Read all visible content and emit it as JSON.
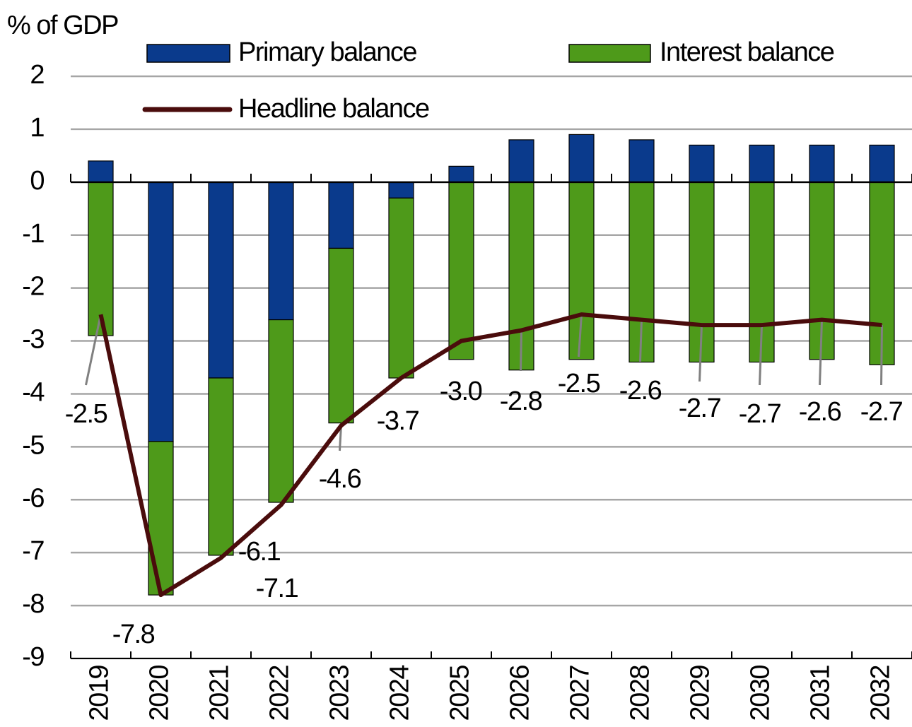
{
  "chart_data": {
    "type": "bar",
    "y_label": "% of GDP",
    "categories": [
      "2019",
      "2020",
      "2021",
      "2022",
      "2023",
      "2024",
      "2025",
      "2026",
      "2027",
      "2028",
      "2029",
      "2030",
      "2031",
      "2032"
    ],
    "series": [
      {
        "name": "Primary balance",
        "color": "#0a3a8c",
        "values": [
          0.4,
          -4.9,
          -3.7,
          -2.6,
          -1.25,
          -0.3,
          0.3,
          0.8,
          0.9,
          0.8,
          0.7,
          0.7,
          0.7,
          0.7
        ]
      },
      {
        "name": "Interest balance",
        "color": "#4e9a1a",
        "values": [
          -2.9,
          -2.9,
          -3.35,
          -3.45,
          -3.3,
          -3.4,
          -3.35,
          -3.55,
          -3.35,
          -3.4,
          -3.4,
          -3.4,
          -3.35,
          -3.45
        ]
      },
      {
        "name": "Headline balance",
        "type": "line",
        "color": "#4a0c0c",
        "values": [
          -2.5,
          -7.8,
          -7.1,
          -6.1,
          -4.6,
          -3.7,
          -3.0,
          -2.8,
          -2.5,
          -2.6,
          -2.7,
          -2.7,
          -2.6,
          -2.7
        ],
        "value_labels": [
          "-2.5",
          "-7.8",
          "-7.1",
          "-6.1",
          "-4.6",
          "-3.7",
          "-3.0",
          "-2.8",
          "-2.5",
          "-2.6",
          "-2.7",
          "-2.7",
          "-2.6",
          "-2.7"
        ]
      }
    ],
    "ylim": [
      -9,
      2
    ],
    "yticks": [
      2,
      1,
      0,
      -1,
      -2,
      -3,
      -4,
      -5,
      -6,
      -7,
      -8,
      -9
    ],
    "grid": true
  }
}
